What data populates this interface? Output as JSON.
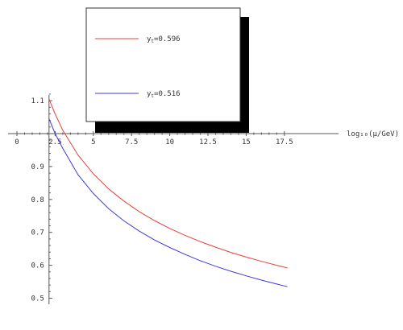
{
  "chart_data": {
    "type": "line",
    "xlabel": "log₁₀(μ/GeV)",
    "ylabel": "",
    "xlim": [
      0,
      18.5
    ],
    "ylim": [
      0.5,
      1.15
    ],
    "x_axis_crosses_y_at": 1.0,
    "y_axis_at_x": 2.1,
    "x_ticks": [
      "0",
      "2.5",
      "5",
      "7.5",
      "10",
      "12.5",
      "15",
      "17.5"
    ],
    "x_tick_values": [
      0,
      2.5,
      5,
      7.5,
      10,
      12.5,
      15,
      17.5
    ],
    "y_ticks": [
      "0.5",
      "0.6",
      "0.7",
      "0.8",
      "0.9",
      "1.1"
    ],
    "y_tick_values": [
      0.5,
      0.6,
      0.7,
      0.8,
      0.9,
      1.1
    ],
    "grid": false,
    "legend_position": "top-center",
    "series": [
      {
        "name": "y_t=0.596",
        "color": "#e8403a",
        "points": [
          [
            2.1,
            1.105
          ],
          [
            2.5,
            1.06
          ],
          [
            3.0,
            1.01
          ],
          [
            4.0,
            0.935
          ],
          [
            5.0,
            0.878
          ],
          [
            6.0,
            0.832
          ],
          [
            7.0,
            0.795
          ],
          [
            8.0,
            0.763
          ],
          [
            9.0,
            0.736
          ],
          [
            10.0,
            0.712
          ],
          [
            11.0,
            0.691
          ],
          [
            12.0,
            0.672
          ],
          [
            13.0,
            0.655
          ],
          [
            14.0,
            0.639
          ],
          [
            15.0,
            0.625
          ],
          [
            16.0,
            0.612
          ],
          [
            17.0,
            0.6
          ],
          [
            17.7,
            0.592
          ]
        ]
      },
      {
        "name": "y_t=0.516",
        "color": "#3b3bdc",
        "points": [
          [
            2.1,
            1.045
          ],
          [
            2.5,
            1.0
          ],
          [
            3.0,
            0.955
          ],
          [
            4.0,
            0.875
          ],
          [
            5.0,
            0.818
          ],
          [
            6.0,
            0.772
          ],
          [
            7.0,
            0.735
          ],
          [
            8.0,
            0.704
          ],
          [
            9.0,
            0.677
          ],
          [
            10.0,
            0.654
          ],
          [
            11.0,
            0.633
          ],
          [
            12.0,
            0.614
          ],
          [
            13.0,
            0.597
          ],
          [
            14.0,
            0.582
          ],
          [
            15.0,
            0.568
          ],
          [
            16.0,
            0.555
          ],
          [
            17.0,
            0.543
          ],
          [
            17.7,
            0.535
          ]
        ]
      }
    ],
    "legend": {
      "entries": [
        {
          "label_base": "y",
          "label_sub": "t",
          "label_value": "=0.596",
          "color": "#e8403a"
        },
        {
          "label_base": "y",
          "label_sub": "t",
          "label_value": "=0.516",
          "color": "#3b3bdc"
        }
      ]
    }
  }
}
